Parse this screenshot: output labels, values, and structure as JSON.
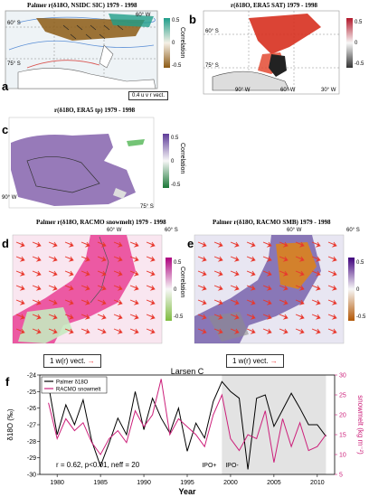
{
  "panels": {
    "a": {
      "label": "a",
      "title": "Palmer r(δ18O, NSIDC SIC) 1979 - 1998",
      "cbar_title": "Correlation",
      "cbar_ticks": [
        "0.5",
        "0",
        "-0.5"
      ],
      "coords": [
        "60° S",
        "75° S",
        "120° W",
        "90° W",
        "60° W"
      ],
      "vector_key": "0.4 u v r vect."
    },
    "b": {
      "label": "b",
      "title": "r(δ18O, ERA5 SAT) 1979 - 1998",
      "cbar_ticks": [
        "0.5",
        "0",
        "-0.5"
      ],
      "coords": [
        "60° S",
        "75° S",
        "90° W",
        "60° W",
        "30° W"
      ]
    },
    "c": {
      "label": "c",
      "title": "r(δ18O, ERA5 tp) 1979 - 1998",
      "cbar_title": "Correlation",
      "cbar_ticks": [
        "0.5",
        "0",
        "-0.5"
      ],
      "coords": [
        "90° W",
        "75° S"
      ]
    },
    "d": {
      "label": "d",
      "title": "Palmer r(δ18O, RACMO snowmelt) 1979 - 1998",
      "cbar_title": "Correlation",
      "cbar_ticks": [
        "0.5",
        "0",
        "-0.5"
      ],
      "coords": [
        "60° W",
        "60° S"
      ]
    },
    "e": {
      "label": "e",
      "title": "Palmer r(δ18O, RACMO SMB) 1979 - 1998",
      "cbar_ticks": [
        "0.5",
        "0",
        "-0.5"
      ],
      "coords": [
        "60° W",
        "60° S"
      ]
    },
    "de_vector_key": "1 w(r) vect."
  },
  "colors": {
    "red": "#e8392e",
    "magenta": "#cc1f7a",
    "purple": "#6a3d9a",
    "green": "#2ca02c",
    "orange": "#d98a1b",
    "teal": "#1f9e8a",
    "brown": "#8c5a14"
  },
  "chart_data": {
    "type": "line",
    "title": "Larsen C",
    "panel_label": "f",
    "xlabel": "Year",
    "ylabel_left": "δ18O (‰)",
    "ylabel_right": "snowmelt (kg m⁻²)",
    "xlim": [
      1978,
      2012
    ],
    "ylim_left": [
      -30,
      -24
    ],
    "ylim_right": [
      5,
      30
    ],
    "xticks": [
      1980,
      1985,
      1990,
      1995,
      2000,
      2005,
      2010
    ],
    "yticks_left": [
      -30,
      -29,
      -28,
      -27,
      -26,
      -25,
      -24
    ],
    "yticks_right": [
      5,
      10,
      15,
      20,
      25,
      30
    ],
    "shaded_span": [
      1999,
      2011
    ],
    "annotations": [
      "r = 0.62, p<0.01, neff = 20",
      "IPO+",
      "IPO-"
    ],
    "legend": "top-left",
    "series": [
      {
        "name": "Palmer δ18O",
        "color": "#000000",
        "axis": "left",
        "x": [
          1979,
          1980,
          1981,
          1982,
          1983,
          1984,
          1985,
          1986,
          1987,
          1988,
          1989,
          1990,
          1991,
          1992,
          1993,
          1994,
          1995,
          1996,
          1997,
          1998,
          1999,
          2000,
          2001,
          2002,
          2003,
          2004,
          2005,
          2006,
          2007,
          2008,
          2009,
          2010,
          2011
        ],
        "values": [
          -24.6,
          -27.6,
          -25.8,
          -27.0,
          -25.5,
          -28.0,
          -29.5,
          -28.1,
          -26.6,
          -27.6,
          -25.0,
          -27.3,
          -25.4,
          -26.6,
          -27.5,
          -26.0,
          -28.6,
          -26.9,
          -27.8,
          -25.6,
          -24.4,
          -25.0,
          -25.4,
          -29.7,
          -25.4,
          -25.2,
          -27.1,
          -26.1,
          -25.1,
          -26.0,
          -27.0,
          -27.0,
          -27.7
        ]
      },
      {
        "name": "RACMO snowmelt",
        "color": "#cc1f7a",
        "axis": "right",
        "x": [
          1979,
          1980,
          1981,
          1982,
          1983,
          1984,
          1985,
          1986,
          1987,
          1988,
          1989,
          1990,
          1991,
          1992,
          1993,
          1994,
          1995,
          1996,
          1997,
          1998,
          1999,
          2000,
          2001,
          2002,
          2003,
          2004,
          2005,
          2006,
          2007,
          2008,
          2009,
          2010,
          2011
        ],
        "values": [
          23,
          14,
          19,
          16,
          18,
          13,
          10,
          14,
          16,
          13,
          21,
          17,
          20,
          29,
          15,
          19,
          17,
          15,
          12,
          20,
          25,
          14,
          11,
          15,
          14,
          21,
          8,
          19,
          12,
          18,
          11,
          12,
          15
        ]
      }
    ]
  }
}
